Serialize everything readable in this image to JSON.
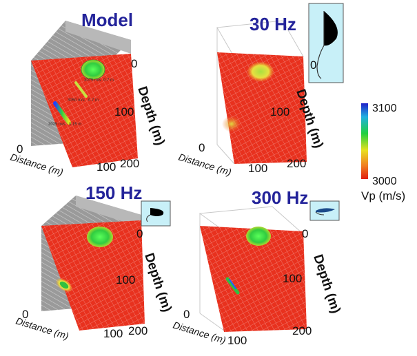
{
  "panels": [
    {
      "id": "model",
      "title": "Model",
      "axis": {
        "distance_label": "Distance (m)",
        "depth_label": "Depth (m)",
        "distance_ticks": [
          "0",
          "100"
        ],
        "depth_ticks": [
          "0",
          "100",
          "200"
        ]
      },
      "annotations": [
        "3075 m/s",
        "0.7 m",
        "3050 m/s",
        "0.7 m",
        "3025 m/s",
        "0.15 m"
      ]
    },
    {
      "id": "30hz",
      "title": "30 Hz",
      "axis": {
        "distance_label": "Distance (m)",
        "depth_label": "Depth (m)",
        "distance_ticks": [
          "0",
          "100"
        ],
        "depth_ticks": [
          "0",
          "100",
          "200"
        ]
      }
    },
    {
      "id": "150hz",
      "title": "150 Hz",
      "axis": {
        "distance_label": "Distance (m)",
        "depth_label": "Depth (m)",
        "distance_ticks": [
          "0",
          "100"
        ],
        "depth_ticks": [
          "0",
          "100",
          "200"
        ]
      }
    },
    {
      "id": "300hz",
      "title": "300 Hz",
      "axis": {
        "distance_label": "Distance (m)",
        "depth_label": "Depth (m)",
        "distance_ticks": [
          "0",
          "100"
        ],
        "depth_ticks": [
          "0",
          "100",
          "200"
        ]
      }
    }
  ],
  "inset_30hz_label": "0",
  "colorbar": {
    "max_label": "3100",
    "min_label": "3000",
    "quantity_label": "Vp (m/s)",
    "colors": [
      "#2020c8",
      "#20b0e0",
      "#20d040",
      "#e8e020",
      "#f08020",
      "#e02010"
    ]
  },
  "colors": {
    "background_red": "#e8311e",
    "anomaly_green": "#3ad84a",
    "anomaly_yellow": "#d8e040",
    "wall_gray": "#9a9a9a",
    "title_blue": "#23239a",
    "inset_bg": "#c8f0f8"
  }
}
